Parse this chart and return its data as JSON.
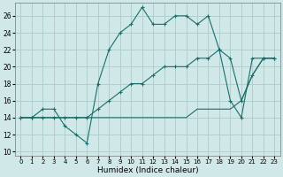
{
  "xlabel": "Humidex (Indice chaleur)",
  "xlim": [
    -0.5,
    23.5
  ],
  "ylim": [
    9.5,
    27.5
  ],
  "xticks": [
    0,
    1,
    2,
    3,
    4,
    5,
    6,
    7,
    8,
    9,
    10,
    11,
    12,
    13,
    14,
    15,
    16,
    17,
    18,
    19,
    20,
    21,
    22,
    23
  ],
  "yticks": [
    10,
    12,
    14,
    16,
    18,
    20,
    22,
    24,
    26
  ],
  "bg_color": "#d0e8e8",
  "grid_color": "#aacccc",
  "line_color": "#1a6e6a",
  "line1_y": [
    14,
    14,
    15,
    15,
    13,
    12,
    11,
    18,
    22,
    24,
    25,
    27,
    25,
    25,
    26,
    26,
    25,
    26,
    22,
    16,
    14,
    21,
    21,
    21
  ],
  "line2_y": [
    14,
    14,
    14,
    14,
    14,
    14,
    14,
    14,
    14,
    14,
    14,
    14,
    14,
    14,
    14,
    14,
    15,
    15,
    15,
    15,
    16,
    19,
    21,
    21
  ],
  "line3_y": [
    14,
    14,
    14,
    14,
    14,
    14,
    14,
    15,
    16,
    17,
    18,
    18,
    19,
    20,
    20,
    20,
    21,
    21,
    22,
    21,
    16,
    19,
    21,
    21
  ]
}
